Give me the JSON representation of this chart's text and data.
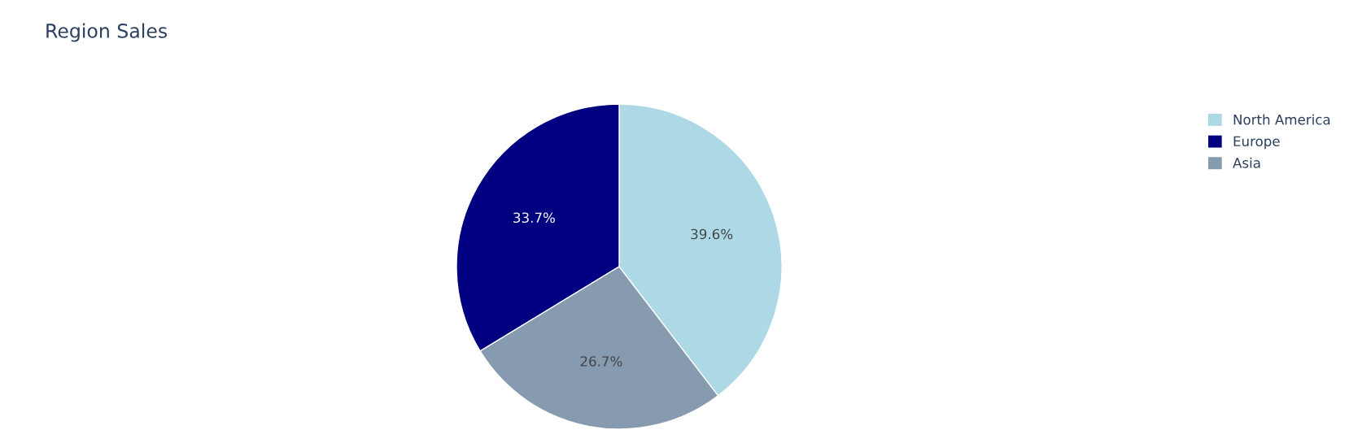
{
  "chart_data": {
    "type": "pie",
    "title": "Region Sales",
    "categories": [
      "North America",
      "Europe",
      "Asia"
    ],
    "values": [
      39.6,
      33.7,
      26.7
    ],
    "colors": [
      "#add8e6",
      "#000080",
      "#869bb0"
    ],
    "value_labels": [
      "39.6%",
      "33.7%",
      "26.7%"
    ],
    "legend": "top right"
  }
}
